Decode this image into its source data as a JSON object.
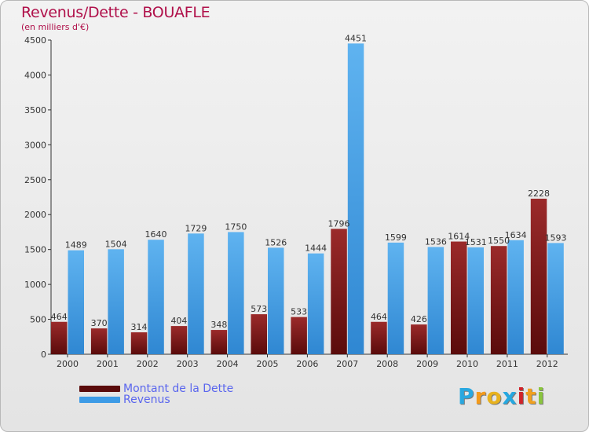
{
  "title": "Revenus/Dette - BOUAFLE",
  "subtitle": "(en milliers d'€)",
  "logo": {
    "letters": [
      "P",
      "r",
      "o",
      "x",
      "i",
      "t",
      "i"
    ],
    "colors": [
      "#2aa8e0",
      "#f39a1b",
      "#e8b21e",
      "#26a8e0",
      "#d0232a",
      "#f0a020",
      "#8ac53e"
    ]
  },
  "colors": {
    "dette": "#7a1515",
    "revenus": "#3d9be6",
    "title": "#b0104a",
    "legend_text": "#5a66ee"
  },
  "chart_data": {
    "type": "bar",
    "title": "Revenus/Dette - BOUAFLE",
    "subtitle": "(en milliers d'€)",
    "categories": [
      "2000",
      "2001",
      "2002",
      "2003",
      "2004",
      "2005",
      "2006",
      "2007",
      "2008",
      "2009",
      "2010",
      "2011",
      "2012"
    ],
    "series": [
      {
        "name": "Montant de la Dette",
        "values": [
          464,
          370,
          314,
          404,
          348,
          573,
          533,
          1796,
          464,
          426,
          1614,
          1550,
          2228
        ]
      },
      {
        "name": "Revenus",
        "values": [
          1489,
          1504,
          1640,
          1729,
          1750,
          1526,
          1444,
          4451,
          1599,
          1536,
          1531,
          1634,
          1593
        ]
      }
    ],
    "ylim": [
      0,
      4500
    ],
    "yticks": [
      0,
      500,
      1000,
      1500,
      2000,
      2500,
      3000,
      3500,
      4000,
      4500
    ],
    "grid": false,
    "legend_position": "bottom-left"
  }
}
